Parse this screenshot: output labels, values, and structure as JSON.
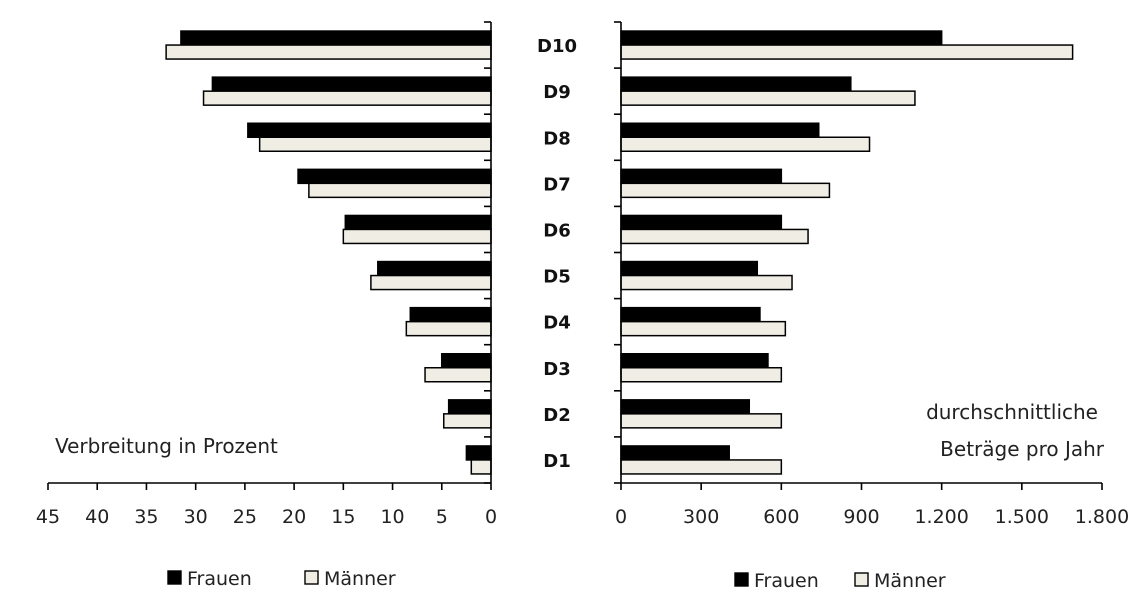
{
  "colors": {
    "frauen": "#000000",
    "maenner": "#f0eee4",
    "stroke": "#000000"
  },
  "chart_data": [
    {
      "type": "bar",
      "orientation": "horizontal",
      "direction": "right-to-left",
      "annotation": "Verbreitung in Prozent",
      "categories": [
        "D1",
        "D2",
        "D3",
        "D4",
        "D5",
        "D6",
        "D7",
        "D8",
        "D9",
        "D10"
      ],
      "series": [
        {
          "name": "Frauen",
          "values": [
            2.5,
            4.3,
            5.0,
            8.2,
            11.5,
            14.8,
            19.6,
            24.7,
            28.3,
            31.5
          ]
        },
        {
          "name": "Männer",
          "values": [
            2.0,
            4.8,
            6.7,
            8.6,
            12.2,
            15.0,
            18.5,
            23.5,
            29.2,
            33.0
          ]
        }
      ],
      "xlim": [
        0,
        45
      ],
      "xticks": [
        0,
        5,
        10,
        15,
        20,
        25,
        30,
        35,
        40,
        45
      ],
      "xtick_labels": [
        "0",
        "5",
        "10",
        "15",
        "20",
        "25",
        "30",
        "35",
        "40",
        "45"
      ],
      "legend": [
        "Frauen",
        "Männer"
      ],
      "legend_position": "bottom"
    },
    {
      "type": "bar",
      "orientation": "horizontal",
      "annotation": [
        "durchschnittliche",
        "Beträge pro Jahr"
      ],
      "categories": [
        "D1",
        "D2",
        "D3",
        "D4",
        "D5",
        "D6",
        "D7",
        "D8",
        "D9",
        "D10"
      ],
      "series": [
        {
          "name": "Frauen",
          "values": [
            405,
            480,
            550,
            520,
            510,
            600,
            600,
            740,
            860,
            1200
          ]
        },
        {
          "name": "Männer",
          "values": [
            600,
            600,
            600,
            615,
            640,
            700,
            780,
            930,
            1100,
            1690
          ]
        }
      ],
      "xlim": [
        0,
        1800
      ],
      "xticks": [
        0,
        300,
        600,
        900,
        1200,
        1500,
        1800
      ],
      "xtick_labels": [
        "0",
        "300",
        "600",
        "900",
        "1.200",
        "1.500",
        "1.800"
      ],
      "legend": [
        "Frauen",
        "Männer"
      ],
      "legend_position": "bottom"
    }
  ]
}
